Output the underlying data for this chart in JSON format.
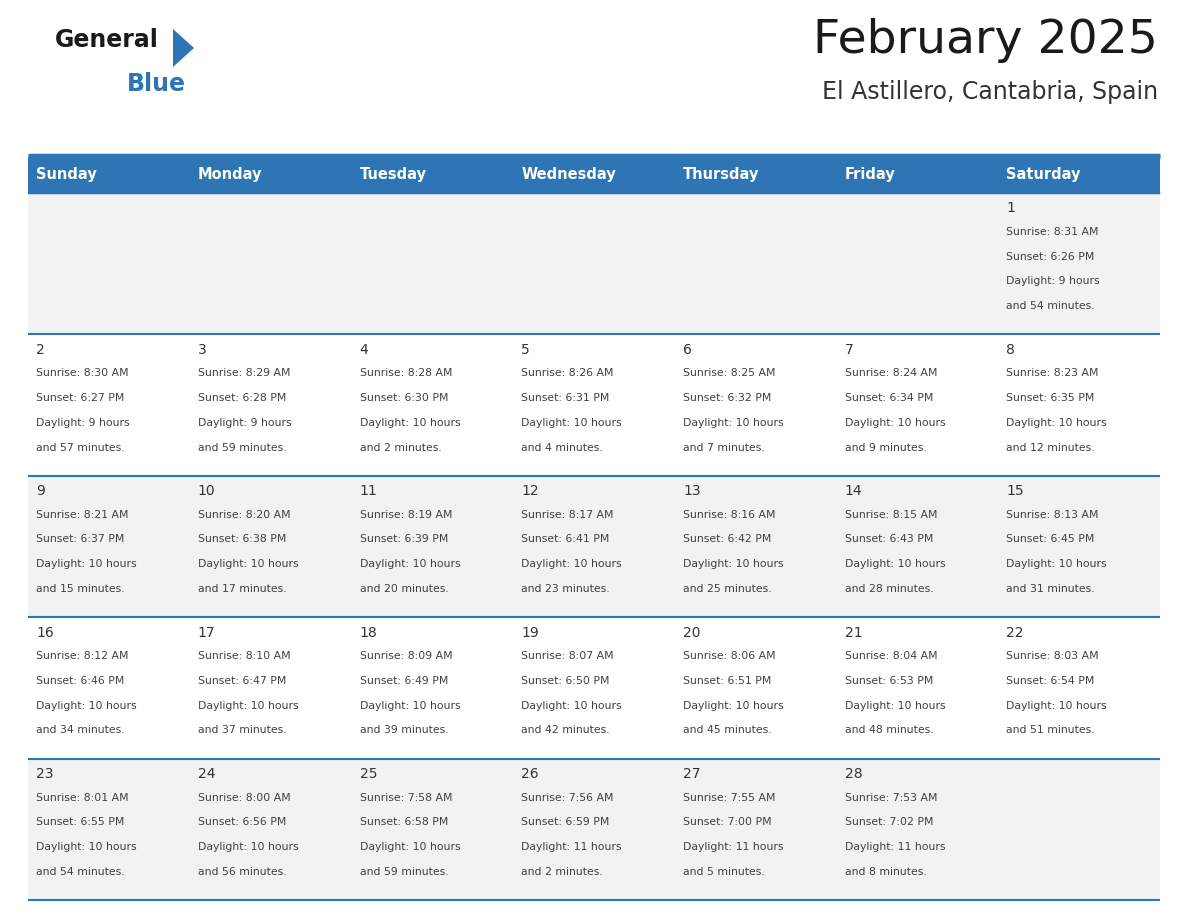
{
  "title": "February 2025",
  "subtitle": "El Astillero, Cantabria, Spain",
  "header_bg": "#2E75B6",
  "header_text_color": "#FFFFFF",
  "cell_bg_odd": "#F2F2F2",
  "cell_bg_even": "#FFFFFF",
  "border_color": "#2E75B6",
  "day_names": [
    "Sunday",
    "Monday",
    "Tuesday",
    "Wednesday",
    "Thursday",
    "Friday",
    "Saturday"
  ],
  "days_data": [
    {
      "day": 1,
      "col": 6,
      "row": 0,
      "sunrise": "8:31 AM",
      "sunset": "6:26 PM",
      "daylight": "9 hours and 54 minutes."
    },
    {
      "day": 2,
      "col": 0,
      "row": 1,
      "sunrise": "8:30 AM",
      "sunset": "6:27 PM",
      "daylight": "9 hours and 57 minutes."
    },
    {
      "day": 3,
      "col": 1,
      "row": 1,
      "sunrise": "8:29 AM",
      "sunset": "6:28 PM",
      "daylight": "9 hours and 59 minutes."
    },
    {
      "day": 4,
      "col": 2,
      "row": 1,
      "sunrise": "8:28 AM",
      "sunset": "6:30 PM",
      "daylight": "10 hours and 2 minutes."
    },
    {
      "day": 5,
      "col": 3,
      "row": 1,
      "sunrise": "8:26 AM",
      "sunset": "6:31 PM",
      "daylight": "10 hours and 4 minutes."
    },
    {
      "day": 6,
      "col": 4,
      "row": 1,
      "sunrise": "8:25 AM",
      "sunset": "6:32 PM",
      "daylight": "10 hours and 7 minutes."
    },
    {
      "day": 7,
      "col": 5,
      "row": 1,
      "sunrise": "8:24 AM",
      "sunset": "6:34 PM",
      "daylight": "10 hours and 9 minutes."
    },
    {
      "day": 8,
      "col": 6,
      "row": 1,
      "sunrise": "8:23 AM",
      "sunset": "6:35 PM",
      "daylight": "10 hours and 12 minutes."
    },
    {
      "day": 9,
      "col": 0,
      "row": 2,
      "sunrise": "8:21 AM",
      "sunset": "6:37 PM",
      "daylight": "10 hours and 15 minutes."
    },
    {
      "day": 10,
      "col": 1,
      "row": 2,
      "sunrise": "8:20 AM",
      "sunset": "6:38 PM",
      "daylight": "10 hours and 17 minutes."
    },
    {
      "day": 11,
      "col": 2,
      "row": 2,
      "sunrise": "8:19 AM",
      "sunset": "6:39 PM",
      "daylight": "10 hours and 20 minutes."
    },
    {
      "day": 12,
      "col": 3,
      "row": 2,
      "sunrise": "8:17 AM",
      "sunset": "6:41 PM",
      "daylight": "10 hours and 23 minutes."
    },
    {
      "day": 13,
      "col": 4,
      "row": 2,
      "sunrise": "8:16 AM",
      "sunset": "6:42 PM",
      "daylight": "10 hours and 25 minutes."
    },
    {
      "day": 14,
      "col": 5,
      "row": 2,
      "sunrise": "8:15 AM",
      "sunset": "6:43 PM",
      "daylight": "10 hours and 28 minutes."
    },
    {
      "day": 15,
      "col": 6,
      "row": 2,
      "sunrise": "8:13 AM",
      "sunset": "6:45 PM",
      "daylight": "10 hours and 31 minutes."
    },
    {
      "day": 16,
      "col": 0,
      "row": 3,
      "sunrise": "8:12 AM",
      "sunset": "6:46 PM",
      "daylight": "10 hours and 34 minutes."
    },
    {
      "day": 17,
      "col": 1,
      "row": 3,
      "sunrise": "8:10 AM",
      "sunset": "6:47 PM",
      "daylight": "10 hours and 37 minutes."
    },
    {
      "day": 18,
      "col": 2,
      "row": 3,
      "sunrise": "8:09 AM",
      "sunset": "6:49 PM",
      "daylight": "10 hours and 39 minutes."
    },
    {
      "day": 19,
      "col": 3,
      "row": 3,
      "sunrise": "8:07 AM",
      "sunset": "6:50 PM",
      "daylight": "10 hours and 42 minutes."
    },
    {
      "day": 20,
      "col": 4,
      "row": 3,
      "sunrise": "8:06 AM",
      "sunset": "6:51 PM",
      "daylight": "10 hours and 45 minutes."
    },
    {
      "day": 21,
      "col": 5,
      "row": 3,
      "sunrise": "8:04 AM",
      "sunset": "6:53 PM",
      "daylight": "10 hours and 48 minutes."
    },
    {
      "day": 22,
      "col": 6,
      "row": 3,
      "sunrise": "8:03 AM",
      "sunset": "6:54 PM",
      "daylight": "10 hours and 51 minutes."
    },
    {
      "day": 23,
      "col": 0,
      "row": 4,
      "sunrise": "8:01 AM",
      "sunset": "6:55 PM",
      "daylight": "10 hours and 54 minutes."
    },
    {
      "day": 24,
      "col": 1,
      "row": 4,
      "sunrise": "8:00 AM",
      "sunset": "6:56 PM",
      "daylight": "10 hours and 56 minutes."
    },
    {
      "day": 25,
      "col": 2,
      "row": 4,
      "sunrise": "7:58 AM",
      "sunset": "6:58 PM",
      "daylight": "10 hours and 59 minutes."
    },
    {
      "day": 26,
      "col": 3,
      "row": 4,
      "sunrise": "7:56 AM",
      "sunset": "6:59 PM",
      "daylight": "11 hours and 2 minutes."
    },
    {
      "day": 27,
      "col": 4,
      "row": 4,
      "sunrise": "7:55 AM",
      "sunset": "7:00 PM",
      "daylight": "11 hours and 5 minutes."
    },
    {
      "day": 28,
      "col": 5,
      "row": 4,
      "sunrise": "7:53 AM",
      "sunset": "7:02 PM",
      "daylight": "11 hours and 8 minutes."
    }
  ],
  "num_rows": 5,
  "num_cols": 7
}
